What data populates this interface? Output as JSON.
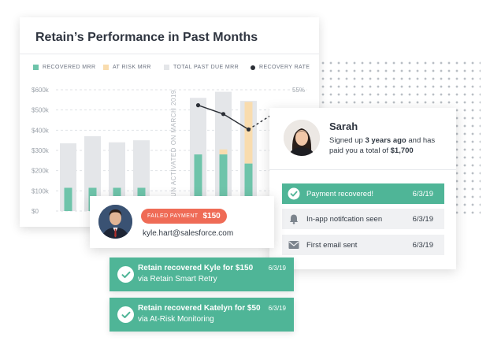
{
  "chart": {
    "title": "Retain’s Performance in Past Months",
    "legend": [
      {
        "label": "RECOVERED MRR",
        "color": "#6ec4aa",
        "shape": "square"
      },
      {
        "label": "AT RISK MRR",
        "color": "#f9dcae",
        "shape": "square"
      },
      {
        "label": "TOTAL PAST DUE MRR",
        "color": "#e4e6e9",
        "shape": "square"
      },
      {
        "label": "RECOVERY RATE",
        "color": "#2b2f36",
        "shape": "dot"
      }
    ],
    "vertical_label": "UN ACTIVATED ON MARCH 2019",
    "right_axis_label": "55%"
  },
  "chart_data": {
    "type": "bar",
    "yticks": [
      "$0",
      "$100k",
      "$200k",
      "$300k",
      "$400k",
      "$500k",
      "$600k"
    ],
    "ylim": [
      0,
      600000
    ],
    "groups": [
      {
        "total_past_due": [
          335000,
          370000,
          340000,
          350000
        ],
        "recovered": [
          115000,
          115000,
          115000,
          115000
        ]
      },
      {
        "total_past_due": [
          560000,
          590000,
          545000
        ],
        "at_risk": [
          0,
          305000,
          540000
        ],
        "recovered": [
          280000,
          280000,
          235000
        ]
      }
    ],
    "recovery_rate": {
      "values": [
        48,
        44,
        37
      ],
      "ylim_percent": [
        0,
        55
      ],
      "trend": "dashed-up"
    }
  },
  "sarah": {
    "name": "Sarah",
    "desc_prefix": "Signed up ",
    "desc_bold1": "3 years ago",
    "desc_middle": " and has paid you a total of ",
    "desc_bold2": "$1,700",
    "events": [
      {
        "label": "Payment recovered!",
        "date": "6/3/19",
        "icon": "check-circle-icon",
        "color": "#4fb597"
      },
      {
        "label": "In-app notifcation seen",
        "date": "6/3/19",
        "icon": "bell-icon",
        "color": "#f0f1f3"
      },
      {
        "label": "First email sent",
        "date": "6/3/19",
        "icon": "envelope-icon",
        "color": "#f0f1f3"
      }
    ]
  },
  "kyle": {
    "badge_label": "FAILED PAYMENT",
    "badge_amount": "$150",
    "email": "kyle.hart@salesforce.com",
    "badge_color": "#ef6b56"
  },
  "notifications": [
    {
      "title": "Retain recovered Kyle for $150",
      "sub": "via Retain Smart Retry",
      "date": "6/3/19"
    },
    {
      "title": "Retain recovered Katelyn for $50",
      "sub": "via At-Risk Monitoring",
      "date": "6/3/19"
    }
  ],
  "colors": {
    "accent": "#4fb597",
    "danger": "#ef6b56"
  }
}
